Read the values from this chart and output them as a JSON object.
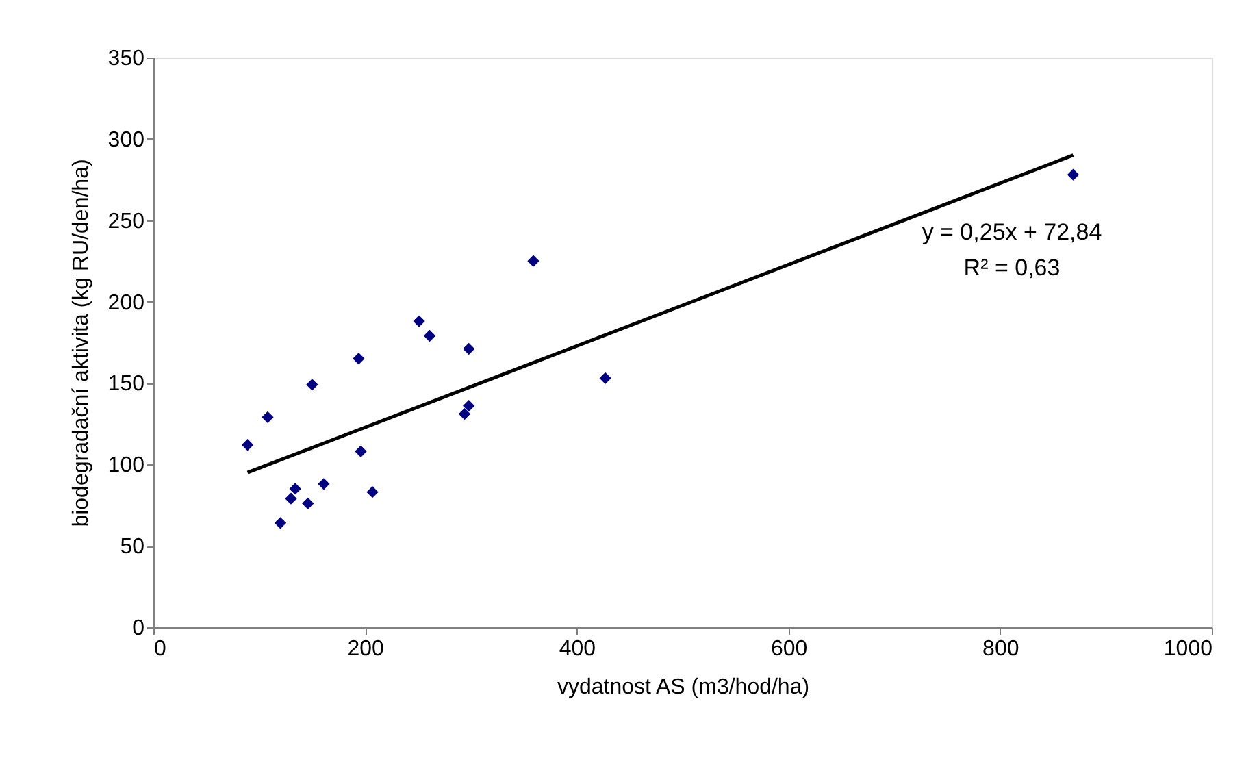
{
  "chart_data": {
    "type": "scatter",
    "xlabel": "vydatnost AS (m3/hod/ha)",
    "ylabel": "biodegradační aktivita (kg RU/den/ha)",
    "xlim": [
      0,
      1000
    ],
    "xticks": [
      0,
      200,
      400,
      600,
      800,
      1000
    ],
    "ylim": [
      0,
      350
    ],
    "yticks": [
      0,
      50,
      100,
      150,
      200,
      250,
      300,
      350
    ],
    "grid": false,
    "marker": "diamond",
    "annotations": [
      "y = 0,25x + 72,84",
      "R² = 0,63"
    ],
    "series": [
      {
        "color": "#000080",
        "x": [
          89,
          108,
          150,
          194,
          251,
          261,
          298,
          359,
          427,
          298,
          294,
          196,
          207,
          161,
          134,
          130,
          146,
          120,
          869
        ],
        "values": [
          112,
          129,
          149,
          165,
          188,
          179,
          171,
          225,
          153,
          136,
          131,
          108,
          83,
          88,
          85,
          79,
          76,
          64,
          278
        ]
      },
      {
        "type": "line",
        "color": "#000000",
        "marker": "none",
        "line_style": "solid",
        "x": [
          89,
          869
        ],
        "values": [
          95,
          290
        ]
      }
    ]
  }
}
